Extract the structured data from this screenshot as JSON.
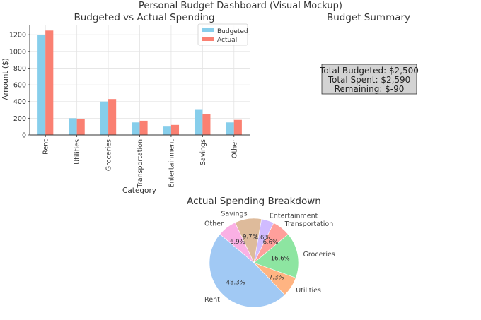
{
  "figure": {
    "suptitle": "Personal Budget Dashboard (Visual Mockup)"
  },
  "colors": {
    "budgeted": "#87CEEB",
    "actual": "#FA8072"
  },
  "summary": {
    "title": "Budget Summary",
    "lines": [
      "Total Budgeted: $2,500",
      "Total Spent: $2,590",
      "Remaining: $-90"
    ]
  },
  "chart_data": [
    {
      "type": "bar",
      "title": "Budgeted vs Actual Spending",
      "xlabel": "Category",
      "ylabel": "Amount ($)",
      "ylim": [
        0,
        1320
      ],
      "yticks": [
        0,
        200,
        400,
        600,
        800,
        1000,
        1200
      ],
      "grid": true,
      "legend_position": "top-right",
      "categories": [
        "Rent",
        "Utilities",
        "Groceries",
        "Transportation",
        "Entertainment",
        "Savings",
        "Other"
      ],
      "series": [
        {
          "name": "Budgeted",
          "values": [
            1200,
            200,
            400,
            150,
            100,
            300,
            150
          ]
        },
        {
          "name": "Actual",
          "values": [
            1250,
            190,
            430,
            170,
            120,
            250,
            180
          ]
        }
      ]
    },
    {
      "type": "pie",
      "title": "Actual Spending Breakdown",
      "labels": [
        "Rent",
        "Utilities",
        "Groceries",
        "Transportation",
        "Entertainment",
        "Savings",
        "Other"
      ],
      "values": [
        48.3,
        7.3,
        16.6,
        6.6,
        4.6,
        9.7,
        6.9
      ],
      "pct_labels": [
        "48.3%",
        "7.3%",
        "16.6%",
        "6.6%",
        "4.6%",
        "9.7%",
        "6.9%"
      ],
      "colors": [
        "#A1C9F4",
        "#FFB482",
        "#8DE5A1",
        "#FF9F9B",
        "#D0BBFF",
        "#DEBB9B",
        "#FAB0E4"
      ]
    }
  ]
}
